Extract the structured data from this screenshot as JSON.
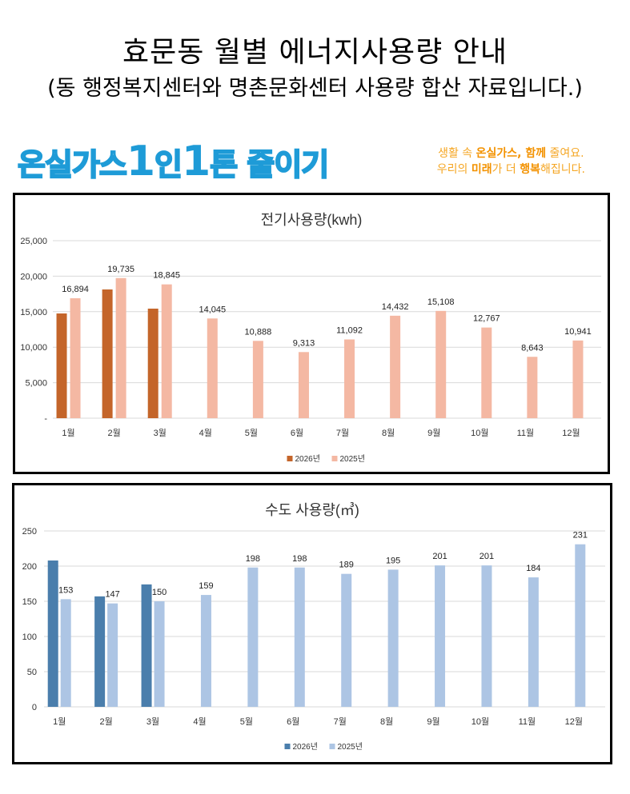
{
  "header": {
    "title": "효문동 월별 에너지사용량 안내",
    "subtitle": "(동 행정복지센터와 명촌문화센터 사용량 합산 자료입니다.)"
  },
  "banner": {
    "slogan_parts": [
      "온실가스",
      "1",
      "인",
      "1",
      "톤 줄이기"
    ],
    "tagline_line1_parts": [
      "생활 속 ",
      "온실가스, 함께",
      " 줄여요."
    ],
    "tagline_line2_parts": [
      "우리의 ",
      "미래",
      "가 더 ",
      "행복",
      "해집니다."
    ],
    "colors": {
      "slogan": "#1e9bd7",
      "tagline": "#f5a623"
    }
  },
  "chart_data": [
    {
      "type": "bar",
      "title": "전기사용량(kwh)",
      "categories": [
        "1월",
        "2월",
        "3월",
        "4월",
        "5월",
        "6월",
        "7월",
        "8월",
        "9월",
        "10월",
        "11월",
        "12월"
      ],
      "series": [
        {
          "name": "2026년",
          "color": "#c4652a",
          "values": [
            14750,
            18130,
            15430,
            null,
            null,
            null,
            null,
            null,
            null,
            null,
            null,
            null
          ],
          "labels": false
        },
        {
          "name": "2025년",
          "color": "#f4b8a3",
          "values": [
            16894,
            19735,
            18845,
            14045,
            10888,
            9313,
            11092,
            14432,
            15108,
            12767,
            8643,
            10941
          ],
          "labels": true
        }
      ],
      "yticks": [
        "-",
        "5,000",
        "10,000",
        "15,000",
        "20,000",
        "25,000"
      ],
      "ylim": [
        0,
        25000
      ],
      "ystep": 5000,
      "grid": true,
      "legend": "bottom"
    },
    {
      "type": "bar",
      "title": "수도 사용량(㎥)",
      "categories": [
        "1월",
        "2월",
        "3월",
        "4월",
        "5월",
        "6월",
        "7월",
        "8월",
        "9월",
        "10월",
        "11월",
        "12월"
      ],
      "series": [
        {
          "name": "2026년",
          "color": "#4a7eac",
          "values": [
            208,
            157,
            174,
            null,
            null,
            null,
            null,
            null,
            null,
            null,
            null,
            null
          ],
          "labels": false
        },
        {
          "name": "2025년",
          "color": "#adc5e4",
          "values": [
            153,
            147,
            150,
            159,
            198,
            198,
            189,
            195,
            201,
            201,
            184,
            231
          ],
          "labels": true
        }
      ],
      "yticks": [
        "0",
        "50",
        "100",
        "150",
        "200",
        "250"
      ],
      "ylim": [
        0,
        250
      ],
      "ystep": 50,
      "grid": true,
      "legend": "bottom"
    }
  ]
}
